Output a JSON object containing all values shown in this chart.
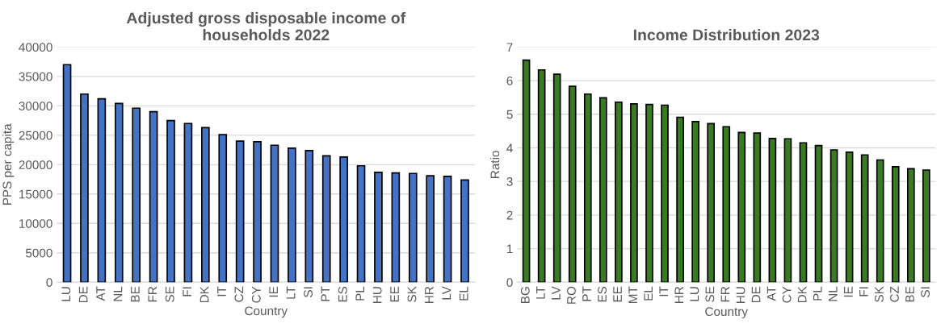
{
  "chart_data": [
    {
      "type": "bar",
      "title": "Adjusted gross disposable income of\nhouseholds 2022",
      "xlabel": "Country",
      "ylabel": "PPS per capita",
      "categories": [
        "LU",
        "DE",
        "AT",
        "NL",
        "BE",
        "FR",
        "SE",
        "FI",
        "DK",
        "IT",
        "CZ",
        "CY",
        "IE",
        "LT",
        "SI",
        "PT",
        "ES",
        "PL",
        "HU",
        "EE",
        "SK",
        "HR",
        "LV",
        "EL"
      ],
      "values": [
        37000,
        32000,
        31200,
        30400,
        29600,
        29000,
        27500,
        27000,
        26300,
        25100,
        24000,
        23900,
        23300,
        22800,
        22400,
        21500,
        21300,
        19800,
        18700,
        18600,
        18500,
        18100,
        18000,
        17400
      ],
      "color": "#4472c4",
      "ylim": [
        0,
        40000
      ],
      "yticks": [
        0,
        5000,
        10000,
        15000,
        20000,
        25000,
        30000,
        35000,
        40000
      ],
      "grid": "y",
      "legend": false
    },
    {
      "type": "bar",
      "title": "Income Distribution 2023",
      "xlabel": "Country",
      "ylabel": "Ratio",
      "categories": [
        "BG",
        "LT",
        "LV",
        "RO",
        "PT",
        "ES",
        "EE",
        "MT",
        "EL",
        "IT",
        "HR",
        "LU",
        "SE",
        "FR",
        "HU",
        "DE",
        "AT",
        "CY",
        "DK",
        "PL",
        "NL",
        "IE",
        "FI",
        "SK",
        "CZ",
        "BE",
        "SI"
      ],
      "values": [
        6.61,
        6.32,
        6.19,
        5.83,
        5.6,
        5.49,
        5.36,
        5.31,
        5.29,
        5.27,
        4.91,
        4.78,
        4.72,
        4.63,
        4.46,
        4.44,
        4.28,
        4.27,
        4.15,
        4.07,
        3.94,
        3.87,
        3.79,
        3.64,
        3.44,
        3.38,
        3.34
      ],
      "color": "#3a7a22",
      "ylim": [
        0,
        7
      ],
      "yticks": [
        0,
        1,
        2,
        3,
        4,
        5,
        6,
        7
      ],
      "grid": "y",
      "legend": false
    }
  ]
}
